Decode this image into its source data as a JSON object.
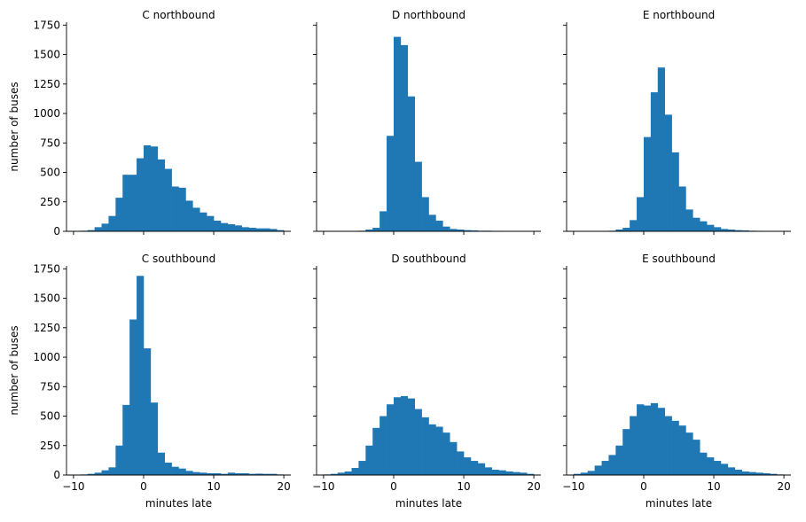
{
  "chart_data": {
    "type": "histogram",
    "shared_x": true,
    "shared_y": true,
    "xlabel": "minutes late",
    "ylabel": "number of buses",
    "xlim": [
      -11,
      21
    ],
    "ylim": [
      0,
      1775
    ],
    "xticks": [
      -10,
      0,
      10,
      20
    ],
    "yticks": [
      0,
      250,
      500,
      750,
      1000,
      1250,
      1500,
      1750
    ],
    "bar_color": "#1f77b4",
    "bin_start": -10,
    "bin_width": 1,
    "bin_count": 30,
    "panels": [
      {
        "title": "C northbound",
        "counts": [
          2,
          5,
          10,
          35,
          65,
          130,
          285,
          480,
          480,
          620,
          730,
          720,
          610,
          530,
          380,
          370,
          260,
          200,
          160,
          130,
          90,
          70,
          60,
          50,
          35,
          30,
          25,
          25,
          20,
          10
        ]
      },
      {
        "title": "D northbound",
        "counts": [
          0,
          0,
          0,
          0,
          0,
          5,
          15,
          30,
          170,
          810,
          1650,
          1580,
          1145,
          590,
          290,
          140,
          90,
          40,
          20,
          15,
          10,
          8,
          5,
          5,
          4,
          3,
          2,
          2,
          2,
          0
        ]
      },
      {
        "title": "E northbound",
        "counts": [
          0,
          0,
          0,
          0,
          0,
          5,
          15,
          30,
          95,
          290,
          800,
          1180,
          1390,
          990,
          670,
          380,
          185,
          115,
          85,
          55,
          35,
          20,
          15,
          10,
          8,
          5,
          4,
          3,
          2,
          1
        ]
      },
      {
        "title": "C southbound",
        "counts": [
          2,
          5,
          10,
          20,
          40,
          65,
          250,
          595,
          1320,
          1690,
          1075,
          615,
          190,
          105,
          70,
          55,
          35,
          25,
          20,
          15,
          15,
          10,
          20,
          15,
          15,
          10,
          12,
          10,
          10,
          5
        ]
      },
      {
        "title": "D southbound",
        "counts": [
          5,
          10,
          20,
          30,
          60,
          120,
          250,
          400,
          500,
          600,
          660,
          670,
          650,
          560,
          490,
          430,
          410,
          360,
          280,
          200,
          150,
          120,
          100,
          65,
          45,
          40,
          30,
          25,
          20,
          10
        ]
      },
      {
        "title": "E southbound",
        "counts": [
          10,
          20,
          35,
          80,
          120,
          170,
          250,
          390,
          500,
          600,
          590,
          610,
          570,
          500,
          460,
          420,
          360,
          300,
          190,
          150,
          120,
          95,
          65,
          45,
          30,
          25,
          20,
          15,
          10,
          5
        ]
      }
    ]
  }
}
